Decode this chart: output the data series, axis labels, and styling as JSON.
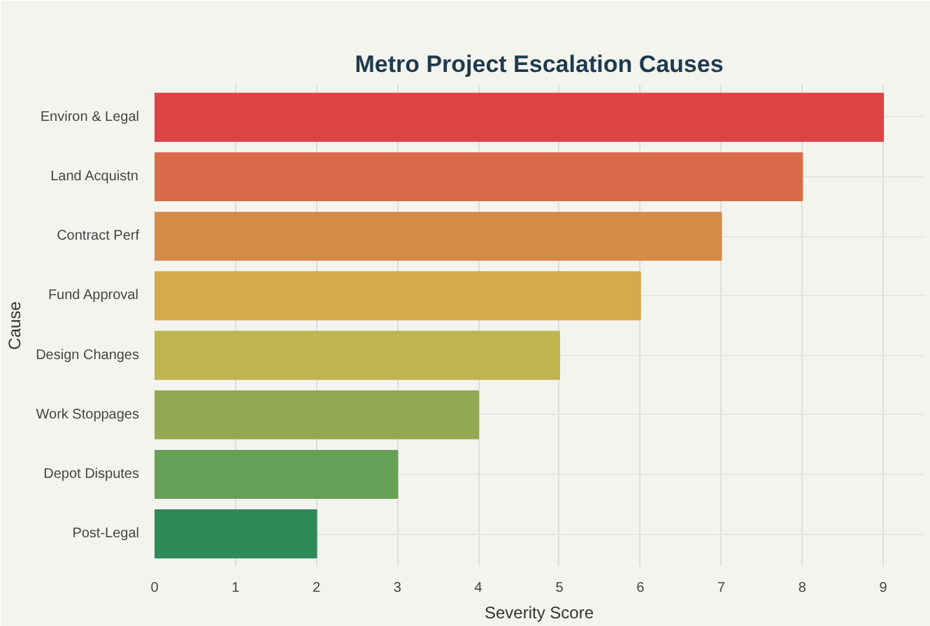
{
  "chart_data": {
    "type": "bar",
    "orientation": "horizontal",
    "title": "Metro Project Escalation Causes",
    "xlabel": "Severity Score",
    "ylabel": "Cause",
    "categories": [
      "Environ & Legal",
      "Land Acquistn",
      "Contract Perf",
      "Fund Approval",
      "Design Changes",
      "Work Stoppages",
      "Depot Disputes",
      "Post-Legal"
    ],
    "values": [
      9,
      8,
      7,
      6,
      5,
      4,
      3,
      2
    ],
    "colors": [
      "#db4545",
      "#d96a4a",
      "#d68a48",
      "#d4aa4c",
      "#beb54e",
      "#93a853",
      "#66a057",
      "#2e8b57"
    ],
    "xlim": [
      0,
      9.5
    ],
    "xticks": [
      0,
      1,
      2,
      3,
      4,
      5,
      6,
      7,
      8,
      9
    ],
    "grid": true
  }
}
